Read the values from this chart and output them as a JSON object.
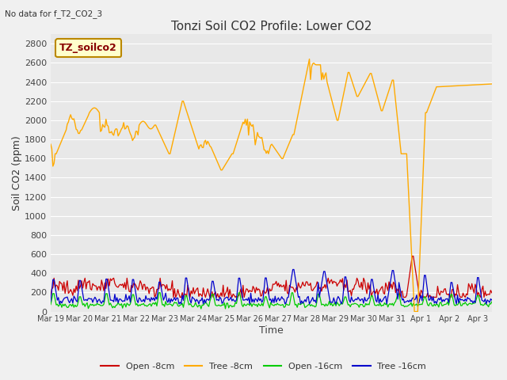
{
  "title": "Tonzi Soil CO2 Profile: Lower CO2",
  "no_data_text": "No data for f_T2_CO2_3",
  "ylabel": "Soil CO2 (ppm)",
  "xlabel": "Time",
  "legend_label": "TZ_soilco2",
  "ylim": [
    0,
    2900
  ],
  "yticks": [
    0,
    200,
    400,
    600,
    800,
    1000,
    1200,
    1400,
    1600,
    1800,
    2000,
    2200,
    2400,
    2600,
    2800
  ],
  "bg_color": "#e8e8e8",
  "grid_color": "#ffffff",
  "series_labels": [
    "Open -8cm",
    "Tree -8cm",
    "Open -16cm",
    "Tree -16cm"
  ],
  "series_colors": [
    "#cc0000",
    "#ffaa00",
    "#00cc00",
    "#0000cc"
  ],
  "title_fontsize": 11,
  "axis_fontsize": 9,
  "tick_fontsize": 8
}
